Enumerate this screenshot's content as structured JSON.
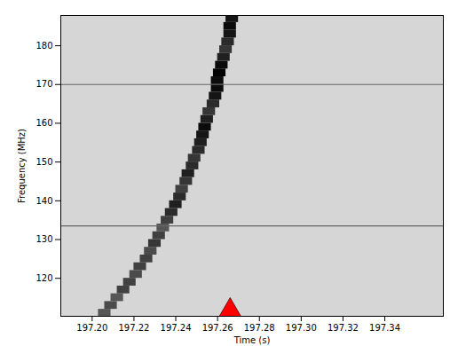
{
  "chart_data": {
    "type": "heatmap",
    "x_label": "Time (s)",
    "y_label": "Frequency (MHz)",
    "xlim": [
      197.185,
      197.368
    ],
    "ylim": [
      110.2,
      187.8
    ],
    "xticks": [
      {
        "value": 197.2,
        "label": "197.20"
      },
      197.22,
      197.24,
      197.26,
      197.28,
      {
        "value": 197.3,
        "label": "197.30"
      },
      197.32,
      197.34
    ],
    "yticks": [
      120,
      130,
      140,
      150,
      160,
      170,
      180
    ],
    "grid": false,
    "color": "gray",
    "color_range": [
      0,
      1
    ],
    "time_bin": 0.006,
    "freq_bin": 2,
    "cells": [
      [
        197.206,
        111,
        0.6
      ],
      [
        197.209,
        113,
        0.65
      ],
      [
        197.212,
        115,
        0.6
      ],
      [
        197.215,
        117,
        0.7
      ],
      [
        197.218,
        119,
        0.7
      ],
      [
        197.221,
        121,
        0.65
      ],
      [
        197.223,
        123,
        0.7
      ],
      [
        197.226,
        125,
        0.7
      ],
      [
        197.228,
        127,
        0.65
      ],
      [
        197.23,
        129,
        0.75
      ],
      [
        197.232,
        131,
        0.7
      ],
      [
        197.234,
        133,
        0.6
      ],
      [
        197.236,
        135,
        0.7
      ],
      [
        197.238,
        137,
        0.8
      ],
      [
        197.24,
        139,
        0.85
      ],
      [
        197.242,
        141,
        0.8
      ],
      [
        197.243,
        143,
        0.7
      ],
      [
        197.245,
        145,
        0.75
      ],
      [
        197.246,
        147,
        0.85
      ],
      [
        197.248,
        149,
        0.8
      ],
      [
        197.249,
        151,
        0.75
      ],
      [
        197.251,
        153,
        0.8
      ],
      [
        197.252,
        155,
        0.85
      ],
      [
        197.253,
        157,
        0.9
      ],
      [
        197.254,
        159,
        0.95
      ],
      [
        197.255,
        161,
        0.85
      ],
      [
        197.256,
        163,
        0.75
      ],
      [
        197.258,
        165,
        0.8
      ],
      [
        197.259,
        167,
        0.9
      ],
      [
        197.26,
        169,
        0.95
      ],
      [
        197.26,
        171,
        0.95
      ],
      [
        197.261,
        173,
        1.0
      ],
      [
        197.262,
        175,
        0.95
      ],
      [
        197.263,
        177,
        0.85
      ],
      [
        197.264,
        179,
        0.75
      ],
      [
        197.265,
        181,
        0.8
      ],
      [
        197.266,
        183,
        0.9
      ],
      [
        197.266,
        185,
        0.95
      ],
      [
        197.267,
        187,
        0.9
      ]
    ],
    "horizontal_lines": [
      170,
      133.5
    ],
    "annotations": [
      {
        "type": "marker",
        "x": 197.266,
        "marker": "triangle",
        "color": "#ff0000"
      }
    ]
  }
}
